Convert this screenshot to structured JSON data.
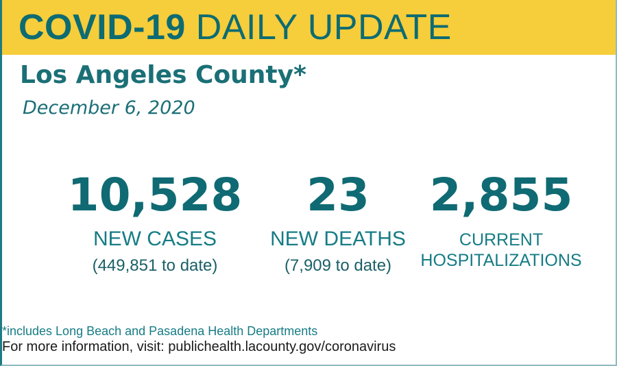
{
  "header": {
    "title_bold": "COVID-19",
    "title_regular": "DAILY UPDATE",
    "colors": {
      "banner": "#f6cd3a",
      "teal": "#0d6b72"
    }
  },
  "location": {
    "county": "Los Angeles County*",
    "date": "December 6, 2020"
  },
  "stats": {
    "new_cases": {
      "number": "10,528",
      "label": "NEW CASES",
      "to_date": "(449,851 to date)"
    },
    "new_deaths": {
      "number": "23",
      "label": "NEW DEATHS",
      "to_date": "(7,909 to date)"
    },
    "hospitalizations": {
      "number": "2,855",
      "label_line1": "CURRENT",
      "label_line2": "HOSPITALIZATIONS"
    }
  },
  "footer": {
    "footnote": "*includes Long Beach and Pasadena Health Departments",
    "more_info": "For more information, visit: publichealth.lacounty.gov/coronavirus"
  }
}
